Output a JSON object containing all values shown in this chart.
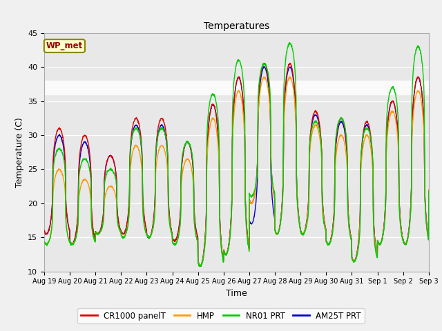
{
  "title": "Temperatures",
  "xlabel": "Time",
  "ylabel": "Temperature (C)",
  "ylim": [
    10,
    45
  ],
  "background_color": "#f0f0f0",
  "plot_bg_color": "#e8e8e8",
  "shaded_band": [
    36,
    38
  ],
  "station_label": "WP_met",
  "legend": [
    "CR1000 panelT",
    "HMP",
    "NR01 PRT",
    "AM25T PRT"
  ],
  "colors": [
    "#dd0000",
    "#ff9900",
    "#00cc00",
    "#0000cc"
  ],
  "xtick_labels": [
    "Aug 19",
    "Aug 20",
    "Aug 21",
    "Aug 22",
    "Aug 23",
    "Aug 24",
    "Aug 25",
    "Aug 26",
    "Aug 27",
    "Aug 28",
    "Aug 29",
    "Aug 30",
    "Aug 31",
    "Sep 1",
    "Sep 2",
    "Sep 3"
  ],
  "ytick_labels": [
    "10",
    "15",
    "20",
    "25",
    "30",
    "35",
    "40",
    "45"
  ],
  "ytick_vals": [
    10,
    15,
    20,
    25,
    30,
    35,
    40,
    45
  ],
  "n_days": 15,
  "peak_hour": 14.0,
  "min_hour": 5.0,
  "cr1000_peaks": [
    31.0,
    30.0,
    27.0,
    32.5,
    32.5,
    29.0,
    34.5,
    38.5,
    40.5,
    40.5,
    33.5,
    32.5,
    32.0,
    35.0,
    38.5,
    38.5
  ],
  "cr1000_mins": [
    15.5,
    14.0,
    15.5,
    15.5,
    15.0,
    14.5,
    10.8,
    12.5,
    20.0,
    15.5,
    15.5,
    14.0,
    11.5,
    14.0,
    14.0,
    21.5
  ],
  "hmp_peaks": [
    25.0,
    23.5,
    22.5,
    28.5,
    28.5,
    26.5,
    32.5,
    36.5,
    38.5,
    38.5,
    31.5,
    30.0,
    30.0,
    33.5,
    36.5,
    36.5
  ],
  "hmp_mins": [
    14.0,
    14.0,
    15.5,
    15.0,
    15.0,
    14.0,
    10.8,
    12.5,
    20.0,
    15.5,
    15.5,
    14.0,
    11.5,
    14.0,
    14.0,
    21.5
  ],
  "nro1_peaks": [
    28.0,
    26.5,
    25.0,
    31.0,
    31.0,
    29.0,
    36.0,
    41.0,
    40.5,
    43.5,
    32.0,
    32.5,
    31.0,
    37.0,
    43.0,
    38.5
  ],
  "nro1_mins": [
    14.0,
    14.0,
    15.5,
    15.0,
    15.0,
    14.0,
    10.8,
    12.5,
    21.0,
    15.5,
    15.5,
    14.0,
    11.5,
    14.0,
    14.0,
    21.5
  ],
  "am25t_peaks": [
    30.0,
    29.0,
    27.0,
    31.5,
    31.5,
    29.0,
    34.5,
    38.5,
    40.0,
    40.0,
    33.0,
    32.0,
    31.5,
    35.0,
    38.5,
    38.5
  ],
  "am25t_mins": [
    15.5,
    14.0,
    15.5,
    15.5,
    15.0,
    14.5,
    10.8,
    12.5,
    17.0,
    15.5,
    15.5,
    14.0,
    11.5,
    14.0,
    14.0,
    21.5
  ]
}
